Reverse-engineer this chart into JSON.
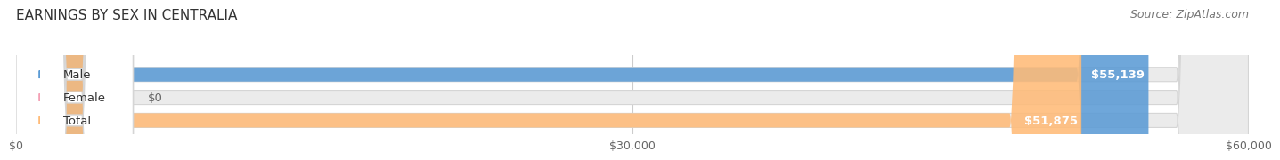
{
  "title": "EARNINGS BY SEX IN CENTRALIA",
  "source": "Source: ZipAtlas.com",
  "categories": [
    "Male",
    "Female",
    "Total"
  ],
  "values": [
    55139,
    0,
    51875
  ],
  "bar_colors": [
    "#5B9BD5",
    "#F4A0B5",
    "#FFBB78"
  ],
  "value_labels": [
    "$55,139",
    "$0",
    "$51,875"
  ],
  "x_ticks": [
    0,
    30000,
    60000
  ],
  "x_tick_labels": [
    "$0",
    "$30,000",
    "$60,000"
  ],
  "xlim": [
    0,
    60000
  ],
  "title_fontsize": 11,
  "source_fontsize": 9,
  "bar_label_fontsize": 9.5,
  "value_label_fontsize": 9.5,
  "background_color": "#FFFFFF",
  "bar_bg_color": "#EBEBEB",
  "bar_border_color": "#D5D5D5",
  "grid_color": "#CCCCCC",
  "text_color": "#333333",
  "tick_color": "#666666"
}
